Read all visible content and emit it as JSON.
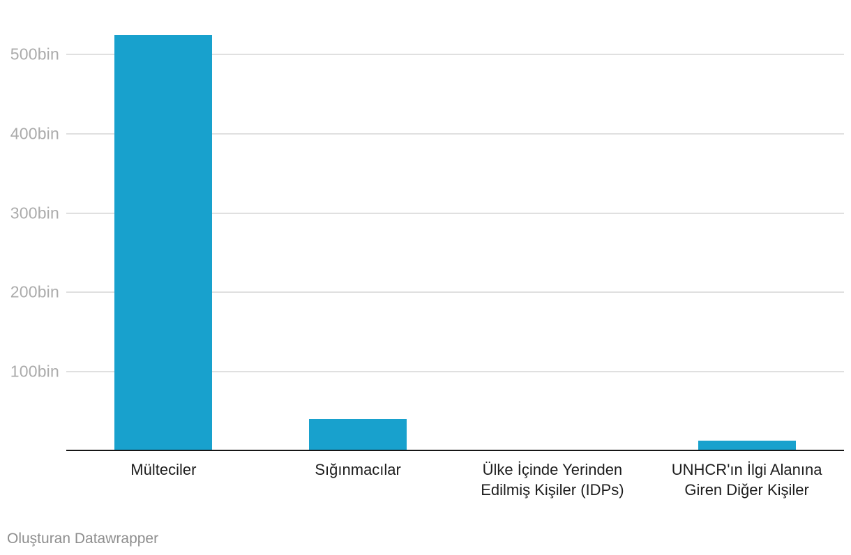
{
  "chart_data": {
    "type": "bar",
    "title": "",
    "xlabel": "",
    "ylabel": "",
    "categories": [
      "Mülteciler",
      "Sığınmacılar",
      "Ülke İçinde Yerinden Edilmiş Kişiler (IDPs)",
      "UNHCR'ın İlgi Alanına Giren Diğer Kişiler"
    ],
    "category_label_lines": [
      [
        "Mülteciler"
      ],
      [
        "Sığınmacılar"
      ],
      [
        "Ülke İçinde Yerinden",
        "Edilmiş Kişiler (IDPs)"
      ],
      [
        "UNHCR'ın İlgi Alanına",
        "Giren Diğer Kişiler"
      ]
    ],
    "values": [
      525000,
      40000,
      0,
      13000
    ],
    "yticks": [
      {
        "value": 100000,
        "label": "100bin"
      },
      {
        "value": 200000,
        "label": "200bin"
      },
      {
        "value": 300000,
        "label": "300bin"
      },
      {
        "value": 400000,
        "label": "400bin"
      },
      {
        "value": 500000,
        "label": "500bin"
      }
    ],
    "ylim": [
      0,
      568000
    ],
    "grid": "horizontal",
    "legend": "none",
    "bar_color": "#18A1CD"
  },
  "colors": {
    "bar": "#18A1CD",
    "gridline": "#E0E0E0",
    "axis_line": "#161616",
    "y_tick_text": "#ABABAB",
    "x_label_text": "#1D1D1D",
    "footer_text": "#8E8E8E",
    "background": "#FFFFFF"
  },
  "footer": {
    "attribution": "Oluşturan Datawrapper"
  }
}
